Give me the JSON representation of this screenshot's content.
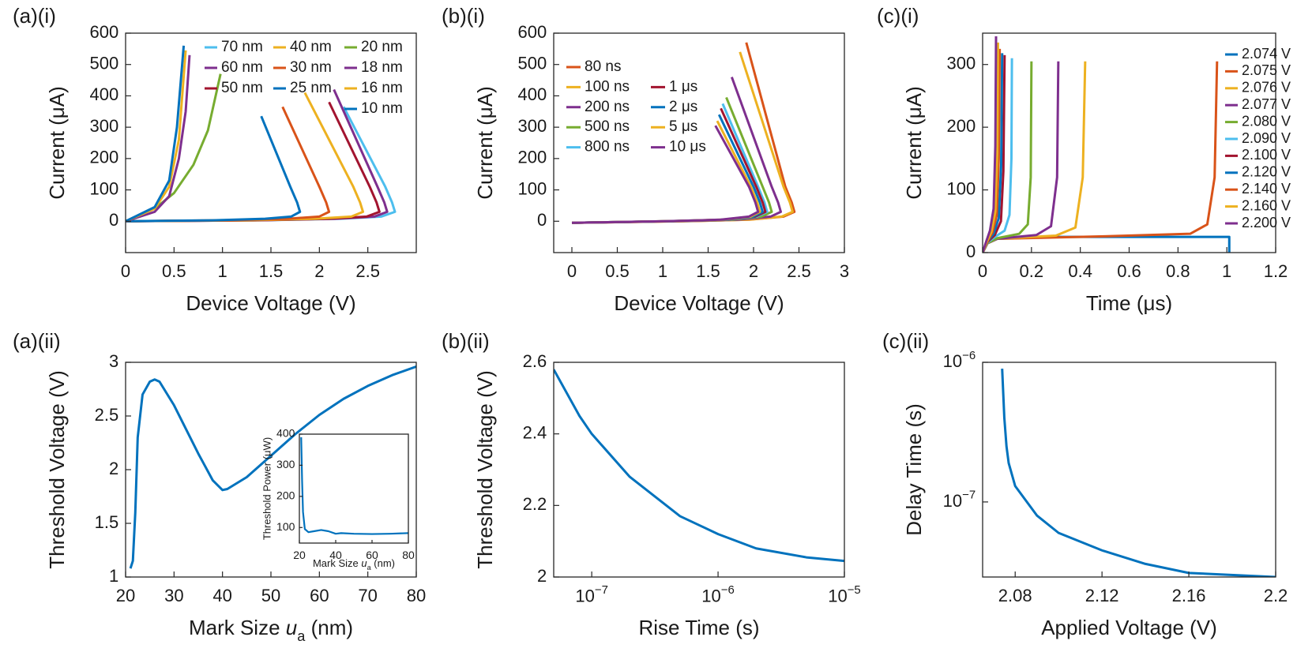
{
  "chart_data": [
    {
      "type": "line",
      "panel": "(a)(i)",
      "xlabel": "Device Voltage (V)",
      "ylabel": "Current (μA)",
      "xlim": [
        0,
        3
      ],
      "ylim": [
        -100,
        600
      ],
      "xticks": [
        0,
        0.5,
        1,
        1.5,
        2,
        2.5
      ],
      "yticks": [
        0,
        100,
        200,
        300,
        400,
        500,
        600
      ],
      "legend": "northeast",
      "series": [
        {
          "name": "70 nm",
          "color": "#4DBEEE",
          "x": [
            0,
            1.39,
            2.22,
            2.64,
            2.78,
            2.75,
            2.68,
            2.25
          ],
          "values": [
            0,
            3,
            8,
            15,
            30,
            60,
            110,
            365
          ]
        },
        {
          "name": "60 nm",
          "color": "#7E2F8E",
          "x": [
            0,
            1.35,
            2.16,
            2.57,
            2.7,
            2.67,
            2.6,
            2.15
          ],
          "values": [
            0,
            3,
            8,
            15,
            30,
            60,
            110,
            420
          ]
        },
        {
          "name": "50 nm",
          "color": "#A2142F",
          "x": [
            0,
            1.31,
            2.1,
            2.49,
            2.62,
            2.59,
            2.52,
            2.1
          ],
          "values": [
            0,
            3,
            8,
            15,
            30,
            60,
            110,
            380
          ]
        },
        {
          "name": "40 nm",
          "color": "#EDB120",
          "x": [
            0,
            1.23,
            1.96,
            2.33,
            2.45,
            2.42,
            2.35,
            1.85
          ],
          "values": [
            0,
            3,
            8,
            15,
            30,
            60,
            110,
            410
          ]
        },
        {
          "name": "30 nm",
          "color": "#D95319",
          "x": [
            0,
            1.05,
            1.68,
            2.0,
            2.1,
            2.07,
            2.0,
            1.62
          ],
          "values": [
            0,
            3,
            8,
            15,
            30,
            60,
            110,
            365
          ]
        },
        {
          "name": "25 nm",
          "color": "#0072BD",
          "x": [
            0,
            0.9,
            1.44,
            1.71,
            1.8,
            1.77,
            1.7,
            1.4
          ],
          "values": [
            0,
            3,
            8,
            15,
            30,
            60,
            110,
            335
          ]
        },
        {
          "name": "20 nm",
          "color": "#77AC30",
          "x": [
            0,
            0.3,
            0.5,
            0.7,
            0.85,
            0.98
          ],
          "values": [
            0,
            40,
            90,
            180,
            290,
            470
          ]
        },
        {
          "name": "18 nm",
          "color": "#7E2F8E",
          "x": [
            0,
            0.3,
            0.45,
            0.55,
            0.62,
            0.66
          ],
          "values": [
            0,
            30,
            80,
            200,
            350,
            530
          ]
        },
        {
          "name": "16 nm",
          "color": "#EDB120",
          "x": [
            0,
            0.3,
            0.45,
            0.55,
            0.62
          ],
          "values": [
            0,
            40,
            110,
            260,
            545
          ]
        },
        {
          "name": "10 nm",
          "color": "#0072BD",
          "x": [
            0,
            0.3,
            0.45,
            0.53,
            0.6
          ],
          "values": [
            0,
            45,
            130,
            300,
            560
          ]
        }
      ]
    },
    {
      "type": "line",
      "panel": "(b)(i)",
      "xlabel": "Device Voltage (V)",
      "ylabel": "Current (μA)",
      "xlim": [
        -0.2,
        3
      ],
      "ylim": [
        -100,
        600
      ],
      "xticks": [
        0,
        0.5,
        1,
        1.5,
        2,
        2.5,
        3
      ],
      "yticks": [
        0,
        100,
        200,
        300,
        400,
        500,
        600
      ],
      "legend": "northwest",
      "series": [
        {
          "name": "80 ns",
          "color": "#D95319",
          "x": [
            0,
            1.23,
            1.96,
            2.33,
            2.45,
            2.42,
            2.35,
            1.92
          ],
          "values": [
            -5,
            0,
            5,
            15,
            30,
            60,
            110,
            570
          ]
        },
        {
          "name": "100 ns",
          "color": "#EDB120",
          "x": [
            0,
            1.22,
            1.94,
            2.31,
            2.43,
            2.4,
            2.33,
            1.85
          ],
          "values": [
            -5,
            0,
            5,
            15,
            30,
            60,
            110,
            540
          ]
        },
        {
          "name": "200 ns",
          "color": "#7E2F8E",
          "x": [
            0,
            1.15,
            1.84,
            2.19,
            2.3,
            2.27,
            2.2,
            1.76
          ],
          "values": [
            -5,
            0,
            5,
            15,
            30,
            60,
            110,
            460
          ]
        },
        {
          "name": "500 ns",
          "color": "#77AC30",
          "x": [
            0,
            1.1,
            1.76,
            2.09,
            2.2,
            2.17,
            2.1,
            1.7
          ],
          "values": [
            -5,
            0,
            5,
            15,
            30,
            60,
            110,
            395
          ]
        },
        {
          "name": "800 ns",
          "color": "#4DBEEE",
          "x": [
            0,
            1.08,
            1.72,
            2.04,
            2.15,
            2.12,
            2.05,
            1.66
          ],
          "values": [
            -5,
            0,
            5,
            15,
            30,
            60,
            110,
            375
          ]
        },
        {
          "name": "1 μs",
          "color": "#A2142F",
          "x": [
            0,
            1.07,
            1.7,
            2.02,
            2.13,
            2.1,
            2.03,
            1.64
          ],
          "values": [
            -5,
            0,
            5,
            15,
            30,
            60,
            110,
            360
          ]
        },
        {
          "name": "2 μs",
          "color": "#0072BD",
          "x": [
            0,
            1.05,
            1.68,
            2.0,
            2.1,
            2.07,
            2.0,
            1.62
          ],
          "values": [
            -5,
            0,
            5,
            15,
            30,
            60,
            110,
            340
          ]
        },
        {
          "name": "5 μs",
          "color": "#EDB120",
          "x": [
            0,
            1.04,
            1.66,
            1.97,
            2.07,
            2.04,
            1.97,
            1.6
          ],
          "values": [
            -5,
            0,
            5,
            15,
            30,
            60,
            110,
            320
          ]
        },
        {
          "name": "10 μs",
          "color": "#7E2F8E",
          "x": [
            0,
            1.03,
            1.64,
            1.95,
            2.05,
            2.02,
            1.95,
            1.58
          ],
          "values": [
            -5,
            0,
            5,
            15,
            30,
            60,
            110,
            305
          ]
        }
      ]
    },
    {
      "type": "line",
      "panel": "(c)(i)",
      "xlabel": "Time (μs)",
      "ylabel": "Current (μA)",
      "xlim": [
        0,
        1.2
      ],
      "ylim": [
        0,
        350
      ],
      "xticks": [
        0,
        0.2,
        0.4,
        0.6,
        0.8,
        1,
        1.2
      ],
      "yticks": [
        0,
        100,
        200,
        300
      ],
      "legend": "northeast",
      "series": [
        {
          "name": "2.074 V",
          "color": "#0072BD",
          "x": [
            0,
            0.02,
            0.06,
            0.3,
            1.01,
            1.01
          ],
          "values": [
            0,
            15,
            22,
            25,
            25,
            0
          ]
        },
        {
          "name": "2.075 V",
          "color": "#D95319",
          "x": [
            0,
            0.02,
            0.06,
            0.5,
            0.85,
            0.92,
            0.95,
            0.96
          ],
          "values": [
            0,
            15,
            22,
            26,
            30,
            45,
            120,
            305
          ]
        },
        {
          "name": "2.076 V",
          "color": "#EDB120",
          "x": [
            0,
            0.02,
            0.06,
            0.3,
            0.38,
            0.41,
            0.42
          ],
          "values": [
            0,
            15,
            22,
            27,
            40,
            120,
            305
          ]
        },
        {
          "name": "2.077 V",
          "color": "#7E2F8E",
          "x": [
            0,
            0.02,
            0.06,
            0.22,
            0.28,
            0.305,
            0.31
          ],
          "values": [
            0,
            15,
            22,
            28,
            42,
            120,
            305
          ]
        },
        {
          "name": "2.080 V",
          "color": "#77AC30",
          "x": [
            0,
            0.02,
            0.06,
            0.15,
            0.185,
            0.197,
            0.2
          ],
          "values": [
            0,
            15,
            23,
            30,
            45,
            120,
            305
          ]
        },
        {
          "name": "2.090 V",
          "color": "#4DBEEE",
          "x": [
            0,
            0.02,
            0.05,
            0.09,
            0.11,
            0.118,
            0.12
          ],
          "values": [
            0,
            16,
            25,
            35,
            60,
            150,
            310
          ]
        },
        {
          "name": "2.100 V",
          "color": "#A2142F",
          "x": [
            0,
            0.02,
            0.05,
            0.075,
            0.085,
            0.09
          ],
          "values": [
            0,
            17,
            28,
            50,
            130,
            315
          ]
        },
        {
          "name": "2.120 V",
          "color": "#0072BD",
          "x": [
            0,
            0.02,
            0.045,
            0.066,
            0.076,
            0.08
          ],
          "values": [
            0,
            18,
            30,
            55,
            140,
            318
          ]
        },
        {
          "name": "2.140 V",
          "color": "#D95319",
          "x": [
            0,
            0.02,
            0.04,
            0.058,
            0.066,
            0.07
          ],
          "values": [
            0,
            18,
            32,
            60,
            150,
            325
          ]
        },
        {
          "name": "2.160 V",
          "color": "#EDB120",
          "x": [
            0,
            0.018,
            0.036,
            0.052,
            0.06,
            0.063
          ],
          "values": [
            0,
            18,
            33,
            65,
            160,
            335
          ]
        },
        {
          "name": "2.200 V",
          "color": "#7E2F8E",
          "x": [
            0,
            0.015,
            0.03,
            0.045,
            0.052,
            0.055
          ],
          "values": [
            0,
            18,
            35,
            70,
            170,
            345
          ]
        }
      ]
    },
    {
      "type": "line",
      "panel": "(a)(ii)",
      "xlabel": [
        "Mark Size ",
        "u",
        "a",
        " (nm)"
      ],
      "ylabel": "Threshold Voltage (V)",
      "xlim": [
        20,
        80
      ],
      "ylim": [
        1,
        3
      ],
      "xticks": [
        20,
        30,
        40,
        50,
        60,
        70,
        80
      ],
      "yticks": [
        1,
        1.5,
        2,
        2.5,
        3
      ],
      "series": [
        {
          "color": "#0072BD",
          "x": [
            21,
            21.5,
            22,
            22.5,
            23.5,
            25,
            26,
            27,
            30,
            35,
            38,
            40,
            41,
            45,
            50,
            55,
            60,
            65,
            70,
            75,
            80
          ],
          "values": [
            1.08,
            1.15,
            1.6,
            2.3,
            2.7,
            2.82,
            2.84,
            2.82,
            2.6,
            2.15,
            1.9,
            1.81,
            1.82,
            1.93,
            2.13,
            2.33,
            2.51,
            2.66,
            2.78,
            2.88,
            2.96
          ]
        }
      ]
    },
    {
      "type": "line",
      "panel": "(b)(ii)",
      "xlabel": "Rise Time (s)",
      "ylabel": "Threshold Voltage (V)",
      "xscale": "log",
      "xlim": [
        5e-08,
        1e-05
      ],
      "ylim": [
        2,
        2.6
      ],
      "xticks": [
        {
          "value": 1e-07,
          "label": "10",
          "exponent": "−7"
        },
        {
          "value": 1e-06,
          "label": "10",
          "exponent": "−6"
        },
        {
          "value": 1e-05,
          "label": "10",
          "exponent": "−5"
        }
      ],
      "yticks": [
        2,
        2.2,
        2.4,
        2.6
      ],
      "series": [
        {
          "color": "#0072BD",
          "x": [
            5e-08,
            8e-08,
            1e-07,
            2e-07,
            5e-07,
            1e-06,
            2e-06,
            5e-06,
            1e-05
          ],
          "values": [
            2.58,
            2.45,
            2.4,
            2.28,
            2.17,
            2.12,
            2.08,
            2.055,
            2.045
          ]
        }
      ]
    },
    {
      "type": "line",
      "panel": "(c)(ii)",
      "xlabel": "Applied Voltage (V)",
      "ylabel": "Delay Time (s)",
      "yscale": "log",
      "xlim": [
        2.065,
        2.2
      ],
      "ylim": [
        2.9e-08,
        1e-06
      ],
      "xticks": [
        2.08,
        2.12,
        2.16,
        2.2
      ],
      "yticks": [
        {
          "value": 1e-07,
          "label": "10",
          "exponent": "−7"
        },
        {
          "value": 1e-06,
          "label": "10",
          "exponent": "−6"
        }
      ],
      "series": [
        {
          "color": "#0072BD",
          "x": [
            2.074,
            2.075,
            2.076,
            2.077,
            2.08,
            2.09,
            2.1,
            2.12,
            2.14,
            2.16,
            2.2
          ],
          "values": [
            9e-07,
            4e-07,
            2.5e-07,
            1.9e-07,
            1.3e-07,
            8e-08,
            6e-08,
            4.5e-08,
            3.6e-08,
            3.1e-08,
            2.9e-08
          ]
        }
      ]
    },
    {
      "type": "line",
      "xlabel": [
        "Mark Size ",
        "u",
        "a",
        " (nm)"
      ],
      "ylabel": "Threshold Power (μW)",
      "xlim": [
        20,
        80
      ],
      "ylim": [
        50,
        400
      ],
      "xticks": [
        20,
        40,
        60,
        80
      ],
      "yticks": [
        100,
        200,
        300,
        400
      ],
      "series": [
        {
          "color": "#0072BD",
          "x": [
            21,
            21.5,
            22,
            23,
            25,
            28,
            32,
            36,
            40,
            43,
            50,
            60,
            70,
            80
          ],
          "values": [
            390,
            250,
            150,
            95,
            85,
            88,
            92,
            88,
            80,
            82,
            80,
            79,
            80,
            82
          ]
        }
      ]
    }
  ]
}
